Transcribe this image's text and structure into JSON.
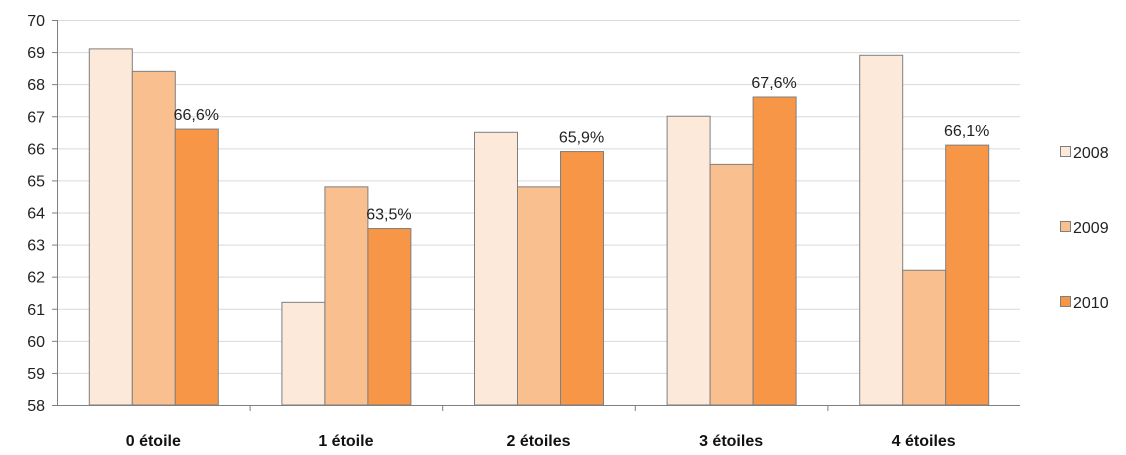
{
  "chart_data": {
    "type": "bar",
    "title": "",
    "xlabel": "",
    "ylabel": "",
    "categories": [
      "0 étoile",
      "1 étoile",
      "2 étoiles",
      "3 étoiles",
      "4 étoiles"
    ],
    "series": [
      {
        "name": "2008",
        "color": "#fde9da",
        "values": [
          69.1,
          61.2,
          66.5,
          67.0,
          68.9
        ]
      },
      {
        "name": "2009",
        "color": "#f9bf8f",
        "values": [
          68.4,
          64.8,
          64.8,
          65.5,
          62.2
        ]
      },
      {
        "name": "2010",
        "color": "#f79646",
        "values": [
          66.6,
          63.5,
          65.9,
          67.6,
          66.1
        ]
      }
    ],
    "data_labels": {
      "series": "2010",
      "texts": [
        "66,6%",
        "63,5%",
        "65,9%",
        "67,6%",
        "66,1%"
      ]
    },
    "ylim": [
      58,
      70
    ],
    "yticks": [
      58,
      59,
      60,
      61,
      62,
      63,
      64,
      65,
      66,
      67,
      68,
      69,
      70
    ],
    "grid": true,
    "legend_position": "right",
    "bar_outline_color": "#7f7f7f",
    "grid_color": "#d9d9d9"
  }
}
